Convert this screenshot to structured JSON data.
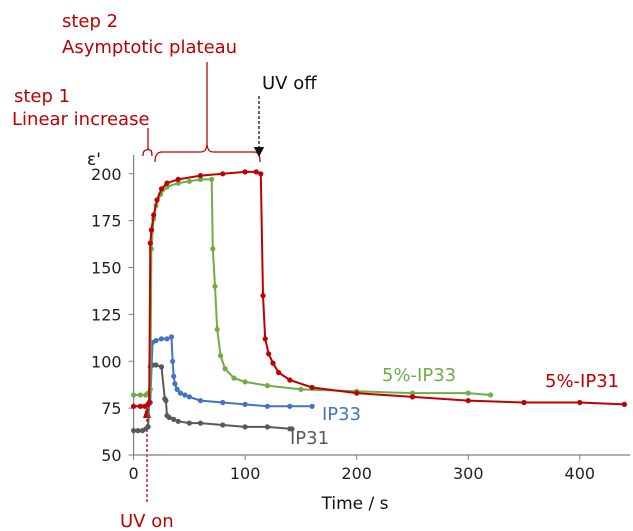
{
  "chart_data": {
    "type": "scatter",
    "xlabel": "Time / s",
    "ylabel": "ε'",
    "xlim": [
      -5,
      445
    ],
    "ylim": [
      50,
      210
    ],
    "xticks": [
      0,
      100,
      200,
      300,
      400
    ],
    "yticks": [
      50,
      75,
      100,
      125,
      150,
      175,
      200
    ],
    "grid": false,
    "annotations": {
      "step1_number": "step 1",
      "step1_text": "Linear increase",
      "step2_number": "step 2",
      "step2_text": "Asymptotic plateau",
      "uv_off": "UV off",
      "uv_on": "UV on"
    },
    "series": [
      {
        "name": "IP31",
        "color": "#595959",
        "label": "IP31",
        "x": [
          0,
          4,
          8,
          11,
          13,
          15,
          17,
          20,
          25,
          28,
          29,
          30,
          32,
          36,
          40,
          50,
          60,
          80,
          100,
          120,
          140,
          142
        ],
        "y": [
          63,
          63,
          63,
          64,
          65,
          97,
          98,
          98,
          97,
          80,
          79,
          71,
          70,
          69,
          68,
          67,
          67,
          66,
          65,
          65,
          64,
          64
        ]
      },
      {
        "name": "IP33",
        "color": "#4472c4",
        "label": "IP33",
        "x": [
          0,
          6,
          11,
          13,
          15,
          17,
          20,
          25,
          30,
          34,
          35,
          36,
          37,
          39,
          42,
          46,
          50,
          60,
          80,
          100,
          120,
          140,
          160
        ],
        "y": [
          76,
          76,
          76,
          77,
          78,
          110,
          111,
          112,
          112,
          113,
          100,
          92,
          88,
          85,
          83,
          82,
          81,
          79,
          78,
          77,
          76,
          76,
          76
        ]
      },
      {
        "name": "5%-IP33",
        "color": "#70ad47",
        "label": "5%-IP33",
        "x": [
          0,
          6,
          11,
          13,
          15,
          16,
          18,
          20,
          24,
          30,
          40,
          50,
          60,
          70,
          71,
          73,
          75,
          78,
          82,
          90,
          100,
          120,
          150,
          200,
          250,
          300,
          320
        ],
        "y": [
          82,
          82,
          82,
          83,
          85,
          160,
          176,
          183,
          189,
          193,
          195,
          196,
          197,
          197,
          160,
          140,
          117,
          103,
          96,
          91,
          89,
          87,
          85,
          84,
          83,
          83,
          82
        ]
      },
      {
        "name": "5%-IP31",
        "color": "#c00000",
        "label": "5%-IP31",
        "x": [
          0,
          6,
          10,
          13,
          14,
          15,
          16,
          18,
          21,
          25,
          30,
          40,
          60,
          80,
          100,
          110,
          114,
          116,
          118,
          121,
          125,
          130,
          140,
          160,
          200,
          250,
          300,
          350,
          400,
          440
        ],
        "y": [
          76,
          76,
          76,
          77,
          78,
          163,
          170,
          178,
          186,
          192,
          195,
          197,
          199,
          200,
          201,
          201,
          200,
          135,
          112,
          104,
          99,
          94,
          90,
          86,
          83,
          81,
          79,
          78,
          78,
          77
        ]
      }
    ]
  }
}
